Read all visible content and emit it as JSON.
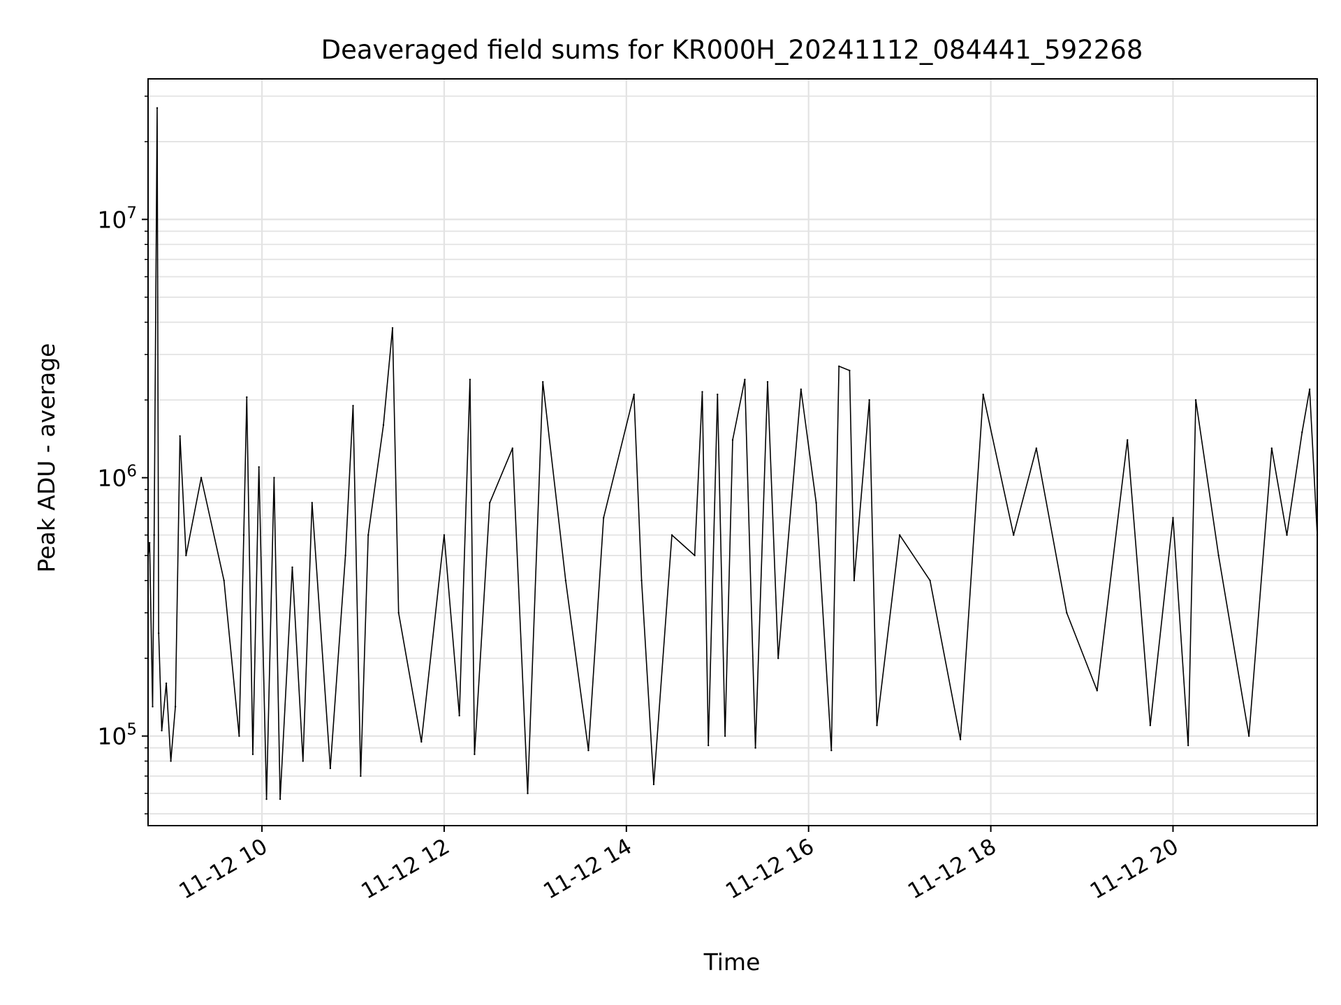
{
  "chart_data": {
    "type": "line",
    "title": "Deaveraged field sums for KR000H_20241112_084441_592268",
    "xlabel": "Time",
    "ylabel": "Peak ADU - average",
    "x_axis": {
      "kind": "datetime",
      "range": [
        "2024-11-12T08:45",
        "2024-11-12T21:35"
      ],
      "ticks": [
        {
          "value": "2024-11-12T10:00",
          "label": "11-12 10"
        },
        {
          "value": "2024-11-12T12:00",
          "label": "11-12 12"
        },
        {
          "value": "2024-11-12T14:00",
          "label": "11-12 14"
        },
        {
          "value": "2024-11-12T16:00",
          "label": "11-12 16"
        },
        {
          "value": "2024-11-12T18:00",
          "label": "11-12 18"
        },
        {
          "value": "2024-11-12T20:00",
          "label": "11-12 20"
        }
      ]
    },
    "y_axis": {
      "scale": "log",
      "range": [
        45000,
        35000000
      ],
      "ticks": [
        {
          "value": 100000,
          "base": "10",
          "exp": "5"
        },
        {
          "value": 1000000,
          "base": "10",
          "exp": "6"
        },
        {
          "value": 10000000,
          "base": "10",
          "exp": "7"
        }
      ]
    },
    "grid": true,
    "series_color": "#000000",
    "series": [
      {
        "points": [
          [
            "2024-11-12T08:45",
            500000
          ],
          [
            "2024-11-12T08:46",
            560000
          ],
          [
            "2024-11-12T08:48",
            130000
          ],
          [
            "2024-11-12T08:49",
            600000
          ],
          [
            "2024-11-12T08:51",
            27000000
          ],
          [
            "2024-11-12T08:52",
            250000
          ],
          [
            "2024-11-12T08:54",
            105000
          ],
          [
            "2024-11-12T08:57",
            160000
          ],
          [
            "2024-11-12T09:00",
            80000
          ],
          [
            "2024-11-12T09:03",
            130000
          ],
          [
            "2024-11-12T09:06",
            1450000
          ],
          [
            "2024-11-12T09:10",
            500000
          ],
          [
            "2024-11-12T09:20",
            1000000
          ],
          [
            "2024-11-12T09:35",
            400000
          ],
          [
            "2024-11-12T09:45",
            100000
          ],
          [
            "2024-11-12T09:48",
            600000
          ],
          [
            "2024-11-12T09:50",
            2050000
          ],
          [
            "2024-11-12T09:54",
            85000
          ],
          [
            "2024-11-12T09:58",
            1100000
          ],
          [
            "2024-11-12T10:03",
            57000
          ],
          [
            "2024-11-12T10:08",
            1000000
          ],
          [
            "2024-11-12T10:12",
            57000
          ],
          [
            "2024-11-12T10:20",
            450000
          ],
          [
            "2024-11-12T10:27",
            80000
          ],
          [
            "2024-11-12T10:33",
            800000
          ],
          [
            "2024-11-12T10:45",
            75000
          ],
          [
            "2024-11-12T10:55",
            500000
          ],
          [
            "2024-11-12T11:00",
            1900000
          ],
          [
            "2024-11-12T11:05",
            70000
          ],
          [
            "2024-11-12T11:10",
            600000
          ],
          [
            "2024-11-12T11:20",
            1600000
          ],
          [
            "2024-11-12T11:26",
            3800000
          ],
          [
            "2024-11-12T11:30",
            300000
          ],
          [
            "2024-11-12T11:45",
            95000
          ],
          [
            "2024-11-12T12:00",
            600000
          ],
          [
            "2024-11-12T12:10",
            120000
          ],
          [
            "2024-11-12T12:17",
            2400000
          ],
          [
            "2024-11-12T12:20",
            85000
          ],
          [
            "2024-11-12T12:30",
            800000
          ],
          [
            "2024-11-12T12:45",
            1300000
          ],
          [
            "2024-11-12T12:55",
            60000
          ],
          [
            "2024-11-12T13:05",
            2350000
          ],
          [
            "2024-11-12T13:20",
            400000
          ],
          [
            "2024-11-12T13:35",
            88000
          ],
          [
            "2024-11-12T13:45",
            700000
          ],
          [
            "2024-11-12T14:05",
            2100000
          ],
          [
            "2024-11-12T14:10",
            400000
          ],
          [
            "2024-11-12T14:18",
            65000
          ],
          [
            "2024-11-12T14:30",
            600000
          ],
          [
            "2024-11-12T14:45",
            500000
          ],
          [
            "2024-11-12T14:50",
            2150000
          ],
          [
            "2024-11-12T14:54",
            92000
          ],
          [
            "2024-11-12T15:00",
            2100000
          ],
          [
            "2024-11-12T15:05",
            100000
          ],
          [
            "2024-11-12T15:10",
            1400000
          ],
          [
            "2024-11-12T15:18",
            2400000
          ],
          [
            "2024-11-12T15:25",
            90000
          ],
          [
            "2024-11-12T15:33",
            2350000
          ],
          [
            "2024-11-12T15:40",
            200000
          ],
          [
            "2024-11-12T15:55",
            2200000
          ],
          [
            "2024-11-12T16:05",
            800000
          ],
          [
            "2024-11-12T16:15",
            88000
          ],
          [
            "2024-11-12T16:20",
            2700000
          ],
          [
            "2024-11-12T16:27",
            2600000
          ],
          [
            "2024-11-12T16:30",
            400000
          ],
          [
            "2024-11-12T16:40",
            2000000
          ],
          [
            "2024-11-12T16:45",
            110000
          ],
          [
            "2024-11-12T17:00",
            600000
          ],
          [
            "2024-11-12T17:20",
            400000
          ],
          [
            "2024-11-12T17:40",
            97000
          ],
          [
            "2024-11-12T17:55",
            2100000
          ],
          [
            "2024-11-12T18:15",
            600000
          ],
          [
            "2024-11-12T18:30",
            1300000
          ],
          [
            "2024-11-12T18:50",
            300000
          ],
          [
            "2024-11-12T19:10",
            150000
          ],
          [
            "2024-11-12T19:30",
            1400000
          ],
          [
            "2024-11-12T19:45",
            110000
          ],
          [
            "2024-11-12T20:00",
            700000
          ],
          [
            "2024-11-12T20:10",
            92000
          ],
          [
            "2024-11-12T20:15",
            2000000
          ],
          [
            "2024-11-12T20:30",
            500000
          ],
          [
            "2024-11-12T20:50",
            100000
          ],
          [
            "2024-11-12T21:05",
            1300000
          ],
          [
            "2024-11-12T21:15",
            600000
          ],
          [
            "2024-11-12T21:25",
            1500000
          ],
          [
            "2024-11-12T21:30",
            2200000
          ],
          [
            "2024-11-12T21:35",
            600000
          ]
        ]
      }
    ]
  }
}
